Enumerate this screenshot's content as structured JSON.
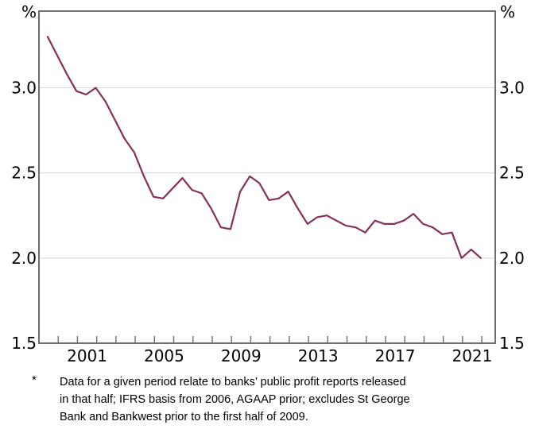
{
  "colors": {
    "line": "#84315a",
    "frame": "#6f6f6f",
    "grid": "#d9d9d9",
    "text": "#000000",
    "background": "#ffffff"
  },
  "chart_data": {
    "type": "line",
    "title": "",
    "unit_left": "%",
    "unit_right": "%",
    "x_axis": {
      "labels": [
        "2001",
        "2005",
        "2009",
        "2013",
        "2017",
        "2021"
      ],
      "tick_start": 1999,
      "tick_end": 2022,
      "xlim": [
        1999.0,
        2022.7
      ]
    },
    "y_axis": {
      "ticks": [
        {
          "label": "3.0",
          "value": 3.0
        },
        {
          "label": "2.5",
          "value": 2.5
        },
        {
          "label": "2.0",
          "value": 2.0
        },
        {
          "label": "1.5",
          "value": 1.5
        }
      ],
      "gridline_values": [
        3.0,
        2.5,
        2.0
      ],
      "ylim": [
        1.5,
        3.45
      ]
    },
    "series": [
      {
        "name": "net-interest-margin",
        "color": "#84315a",
        "x_start": 1999.45,
        "x_step": 0.5,
        "periods": [
          "1999 H1",
          "1999 H2",
          "2000 H1",
          "2000 H2",
          "2001 H1",
          "2001 H2",
          "2002 H1",
          "2002 H2",
          "2003 H1",
          "2003 H2",
          "2004 H1",
          "2004 H2",
          "2005 H1",
          "2005 H2",
          "2006 H1",
          "2006 H2",
          "2007 H1",
          "2007 H2",
          "2008 H1",
          "2008 H2",
          "2009 H1",
          "2009 H2",
          "2010 H1",
          "2010 H2",
          "2011 H1",
          "2011 H2",
          "2012 H1",
          "2012 H2",
          "2013 H1",
          "2013 H2",
          "2014 H1",
          "2014 H2",
          "2015 H1",
          "2015 H2",
          "2016 H1",
          "2016 H2",
          "2017 H1",
          "2017 H2",
          "2018 H1",
          "2018 H2",
          "2019 H1",
          "2019 H2",
          "2020 H1",
          "2020 H2",
          "2021 H1",
          "2021 H2"
        ],
        "values": [
          3.3,
          3.19,
          3.08,
          2.98,
          2.96,
          3.0,
          2.92,
          2.81,
          2.7,
          2.62,
          2.48,
          2.36,
          2.35,
          2.41,
          2.47,
          2.4,
          2.38,
          2.29,
          2.18,
          2.17,
          2.39,
          2.48,
          2.44,
          2.34,
          2.35,
          2.39,
          2.29,
          2.2,
          2.24,
          2.25,
          2.22,
          2.19,
          2.18,
          2.15,
          2.22,
          2.2,
          2.2,
          2.22,
          2.26,
          2.2,
          2.18,
          2.14,
          2.15,
          2.0,
          2.05,
          2.0
        ]
      }
    ]
  },
  "footnote": {
    "marker": "*",
    "lines": [
      "Data for a given period relate to banks’ public profit reports released",
      "in that half; IFRS basis from 2006, AGAAP prior; excludes St George",
      "Bank and Bankwest prior to the first half of 2009."
    ]
  }
}
